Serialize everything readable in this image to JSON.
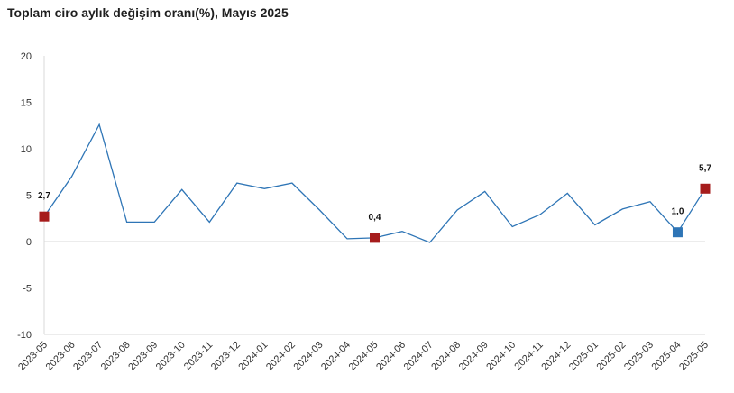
{
  "chart_data": {
    "type": "line",
    "title": "Toplam ciro aylık değişim oranı(%), Mayıs 2025",
    "xlabel": "",
    "ylabel": "",
    "ylim": [
      -10,
      20
    ],
    "y_ticks": [
      20,
      15,
      10,
      5,
      0,
      -5,
      -10
    ],
    "grid": false,
    "categories": [
      "2023-05",
      "2023-06",
      "2023-07",
      "2023-08",
      "2023-09",
      "2023-10",
      "2023-11",
      "2023-12",
      "2024-01",
      "2024-02",
      "2024-03",
      "2024-04",
      "2024-05",
      "2024-06",
      "2024-07",
      "2024-08",
      "2024-09",
      "2024-10",
      "2024-11",
      "2024-12",
      "2025-01",
      "2025-02",
      "2025-03",
      "2025-04",
      "2025-05"
    ],
    "series": [
      {
        "values": [
          2.7,
          7.0,
          12.6,
          2.1,
          2.1,
          5.6,
          2.1,
          6.3,
          5.7,
          6.3,
          3.4,
          0.3,
          0.4,
          1.1,
          -0.1,
          3.4,
          5.4,
          1.6,
          2.9,
          5.2,
          1.8,
          3.5,
          4.3,
          1.0,
          5.7
        ],
        "color": "#2e75b6"
      }
    ],
    "highlighted_points": [
      {
        "category": "2023-05",
        "label": "2,7",
        "color": "#a61c1c"
      },
      {
        "category": "2024-05",
        "label": "0,4",
        "color": "#a61c1c"
      },
      {
        "category": "2025-04",
        "label": "1,0",
        "color": "#2e75b6"
      },
      {
        "category": "2025-05",
        "label": "5,7",
        "color": "#a61c1c"
      }
    ]
  }
}
